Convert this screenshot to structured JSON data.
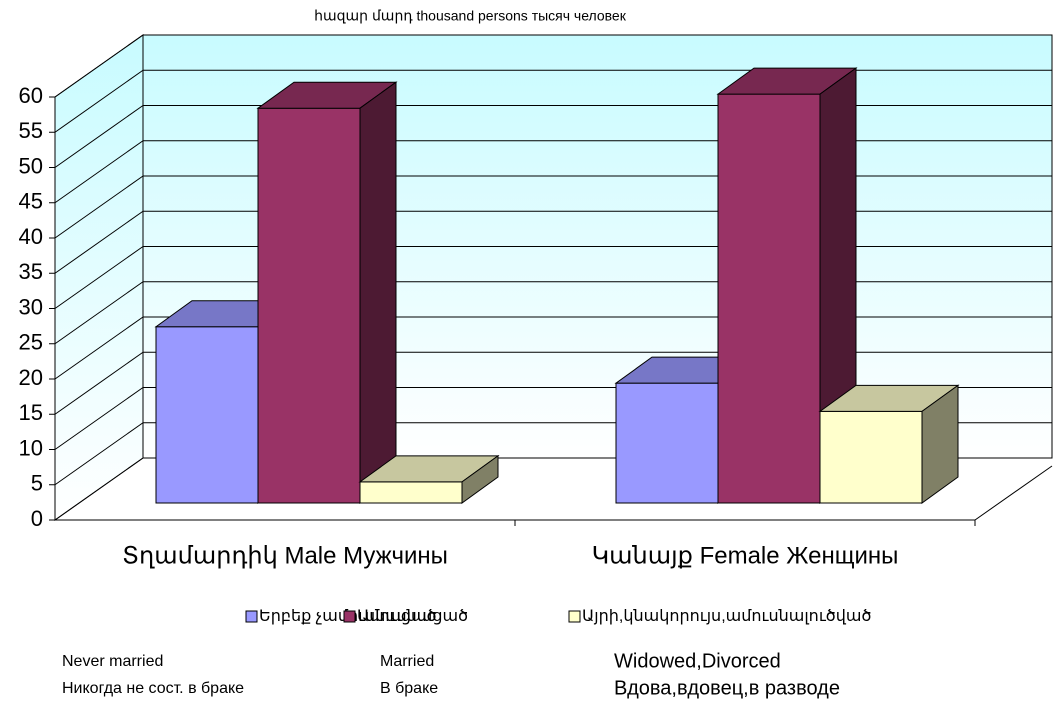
{
  "chart_data": {
    "type": "bar3d",
    "title": "հազար մարդ thousand persons тысяч человек",
    "categories": [
      "Տղամարդիկ Male Мужчины",
      "Կանայք Female Женщины"
    ],
    "series": [
      {
        "name": "Երբեք չամուսնացած",
        "color": "#9999ff",
        "values": [
          25,
          17
        ]
      },
      {
        "name": "Ամուսնացած",
        "color": "#993366",
        "values": [
          56,
          58
        ]
      },
      {
        "name": "Այրի,կնակորույս,ամուսնալուծված",
        "color": "#ffffcc",
        "values": [
          3,
          13
        ]
      }
    ],
    "annotations": [
      [
        "Never married",
        "Никогда не сост. в браке"
      ],
      [
        "Married",
        "В браке"
      ],
      [
        "Widowed,Divorced",
        "Вдова,вдовец,в разводе"
      ]
    ],
    "ylim": [
      0,
      60
    ],
    "yticks": [
      0,
      5,
      10,
      15,
      20,
      25,
      30,
      35,
      40,
      45,
      50,
      55,
      60
    ],
    "grid": true,
    "legend": "bottom"
  }
}
